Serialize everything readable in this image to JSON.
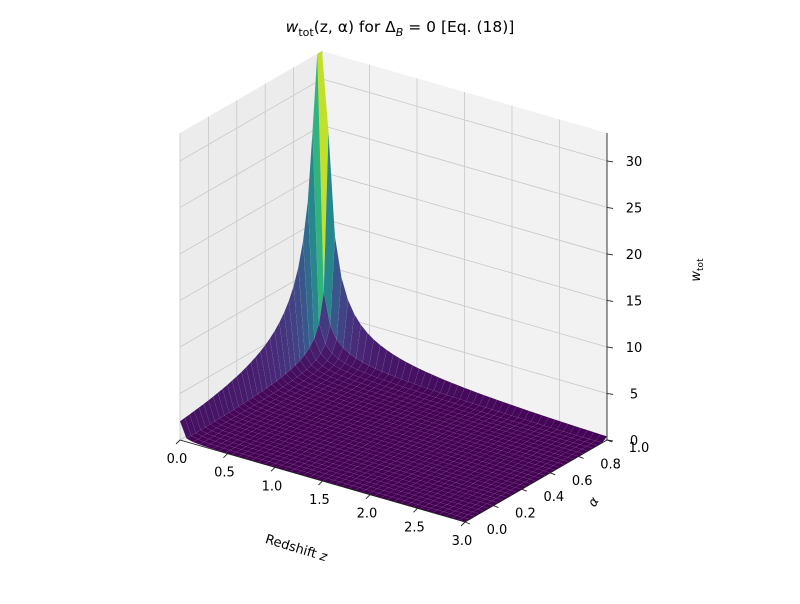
{
  "chart_data": {
    "type": "surface",
    "title": "w_tot(z, α) for Δ_B = 0  [Eq. (18)]",
    "title_parts": {
      "w": "w",
      "w_sub": "tot",
      "args": "(z, α) for Δ",
      "delta_sub": "B",
      "rest": " = 0  [Eq. (18)]"
    },
    "xlabel": "Redshift z",
    "xlabel_parts": {
      "text": "Redshift ",
      "var": "z"
    },
    "ylabel": "α",
    "zlabel": "w_tot",
    "zlabel_parts": {
      "var": "w",
      "sub": "tot"
    },
    "x_ticks": [
      "0.0",
      "0.5",
      "1.0",
      "1.5",
      "2.0",
      "2.5",
      "3.0"
    ],
    "y_ticks": [
      "0.0",
      "0.2",
      "0.4",
      "0.6",
      "0.8",
      "1.0"
    ],
    "z_ticks": [
      "0",
      "5",
      "10",
      "15",
      "20",
      "25",
      "30"
    ],
    "xlim": [
      0,
      3
    ],
    "ylim": [
      0,
      1
    ],
    "zlim": [
      0,
      33
    ],
    "colormap": "viridis",
    "grid": true,
    "surface_peak": {
      "z": 0.0,
      "alpha": 1.0,
      "w_tot": 33
    },
    "surface_floor": 0.0
  }
}
